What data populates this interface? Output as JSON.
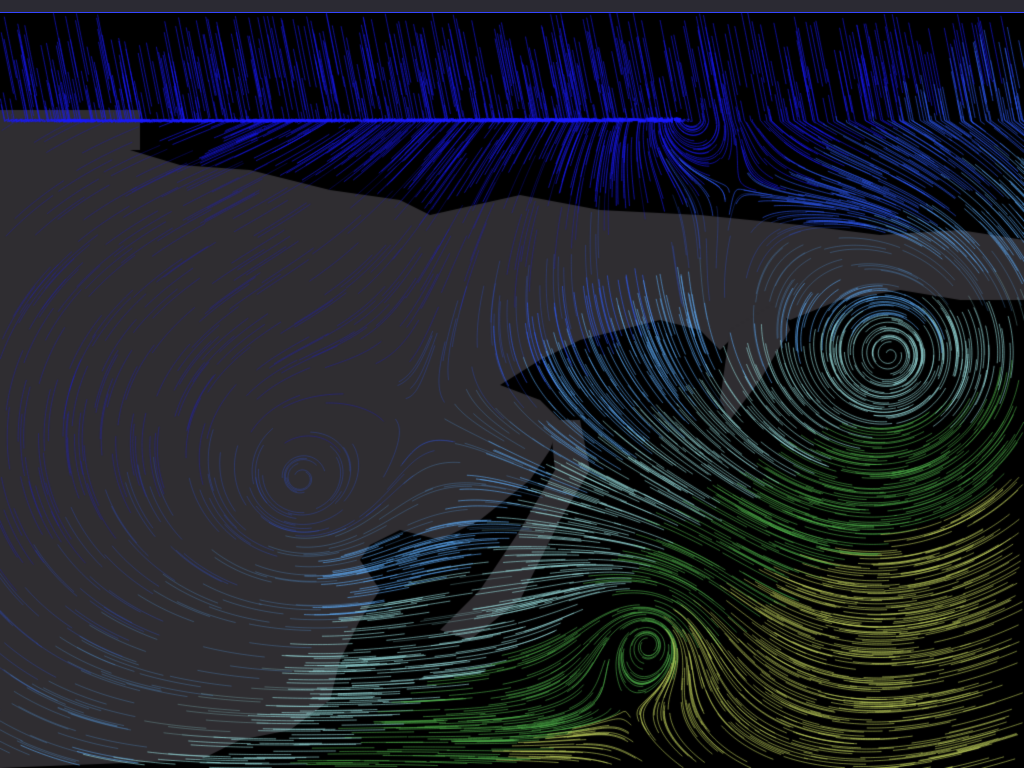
{
  "map": {
    "layer": "wind-streamlines",
    "colors": {
      "ocean": "#000000",
      "land": "#2f2d31",
      "speed_scale": [
        "#1a1aff",
        "#2f5cff",
        "#5fb0ff",
        "#9fe8e8",
        "#4fb04a",
        "#c8d860"
      ]
    }
  }
}
